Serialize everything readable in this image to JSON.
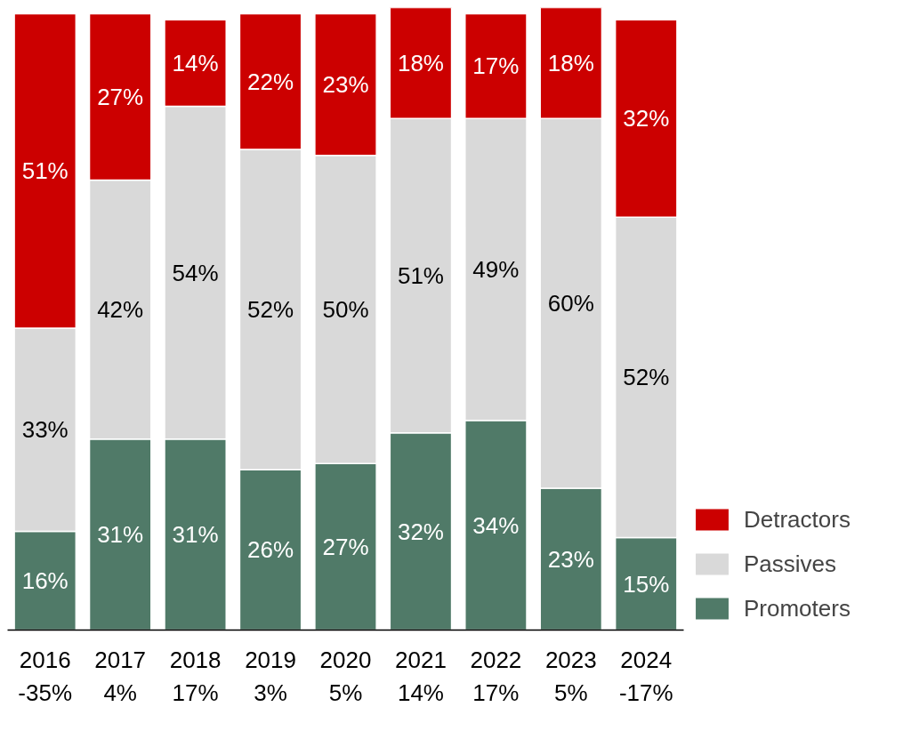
{
  "chart_data": {
    "type": "bar",
    "stacked": true,
    "categories": [
      "2016",
      "2017",
      "2018",
      "2019",
      "2020",
      "2021",
      "2022",
      "2023",
      "2024"
    ],
    "series": [
      {
        "name": "Promoters",
        "color": "#507a68",
        "values": [
          16,
          31,
          31,
          26,
          27,
          32,
          34,
          23,
          15
        ],
        "value_labels": [
          "16%",
          "31%",
          "31%",
          "26%",
          "27%",
          "32%",
          "34%",
          "23%",
          "15%"
        ]
      },
      {
        "name": "Passives",
        "color": "#d9d9d9",
        "values": [
          33,
          42,
          54,
          52,
          50,
          51,
          49,
          60,
          52
        ],
        "value_labels": [
          "33%",
          "42%",
          "54%",
          "52%",
          "50%",
          "51%",
          "49%",
          "60%",
          "52%"
        ]
      },
      {
        "name": "Detractors",
        "color": "#cc0000",
        "values": [
          51,
          27,
          14,
          22,
          23,
          18,
          17,
          18,
          32
        ],
        "value_labels": [
          "51%",
          "27%",
          "14%",
          "22%",
          "23%",
          "18%",
          "17%",
          "18%",
          "32%"
        ]
      }
    ],
    "annotations": [
      "-35%",
      "4%",
      "17%",
      "3%",
      "5%",
      "14%",
      "17%",
      "5%",
      "-17%"
    ],
    "legend": "bottom right",
    "grid": false
  }
}
